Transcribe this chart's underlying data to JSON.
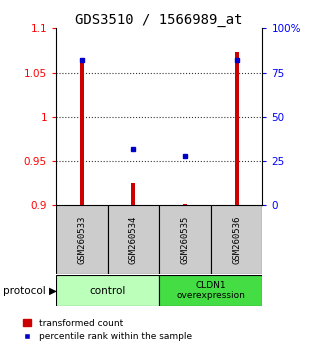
{
  "title": "GDS3510 / 1566989_at",
  "samples": [
    "GSM260533",
    "GSM260534",
    "GSM260535",
    "GSM260536"
  ],
  "red_values": [
    1.067,
    0.925,
    0.902,
    1.073
  ],
  "blue_values": [
    0.82,
    0.32,
    0.28,
    0.82
  ],
  "ylim_left": [
    0.9,
    1.1
  ],
  "ylim_right": [
    0.0,
    1.0
  ],
  "yticks_left": [
    0.9,
    0.95,
    1.0,
    1.05,
    1.1
  ],
  "yticks_left_labels": [
    "0.9",
    "0.95",
    "1",
    "1.05",
    "1.1"
  ],
  "yticks_right": [
    0.0,
    0.25,
    0.5,
    0.75,
    1.0
  ],
  "yticks_right_labels": [
    "0",
    "25",
    "50",
    "75",
    "100%"
  ],
  "group1_label": "control",
  "group2_label": "CLDN1\noverexpression",
  "protocol_label": "protocol",
  "legend_red": "transformed count",
  "legend_blue": "percentile rank within the sample",
  "bar_color": "#cc0000",
  "dot_color": "#0000cc",
  "bar_width": 0.08,
  "title_fontsize": 10,
  "tick_fontsize": 7.5,
  "group_bg_color_1": "#bbffbb",
  "group_bg_color_2": "#44dd44",
  "sample_bg_color": "#cccccc",
  "dotted_lines": [
    0.95,
    1.0,
    1.05
  ],
  "baseline": 0.9
}
